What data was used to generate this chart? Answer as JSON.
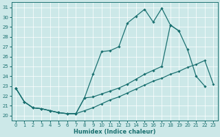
{
  "xlabel": "Humidex (Indice chaleur)",
  "bg_color": "#cce8e8",
  "line_color": "#1a7070",
  "xlim": [
    -0.5,
    23.5
  ],
  "ylim": [
    19.5,
    31.5
  ],
  "xticks": [
    0,
    1,
    2,
    3,
    4,
    5,
    6,
    7,
    8,
    9,
    10,
    11,
    12,
    13,
    14,
    15,
    16,
    17,
    18,
    19,
    20,
    21,
    22,
    23
  ],
  "yticks": [
    20,
    21,
    22,
    23,
    24,
    25,
    26,
    27,
    28,
    29,
    30,
    31
  ],
  "line1_y": [
    22.8,
    21.4,
    20.8,
    20.7,
    20.5,
    20.3,
    20.2,
    20.2,
    21.8,
    24.2,
    26.5,
    26.6,
    27.0,
    29.4,
    30.1,
    30.8,
    29.5,
    30.9,
    29.2,
    28.6,
    26.7,
    24.0,
    23.0,
    null
  ],
  "line2_y": [
    22.8,
    21.4,
    20.8,
    20.7,
    20.5,
    20.3,
    20.2,
    20.2,
    21.8,
    21.9,
    22.2,
    22.5,
    22.8,
    23.2,
    23.7,
    24.2,
    24.6,
    25.0,
    29.2,
    28.6,
    null,
    null,
    null,
    null
  ],
  "line3_y": [
    22.8,
    21.4,
    20.8,
    20.7,
    20.5,
    20.3,
    20.2,
    20.2,
    20.5,
    20.8,
    21.2,
    21.6,
    21.9,
    22.3,
    22.7,
    23.1,
    23.5,
    23.8,
    24.2,
    24.5,
    24.9,
    25.2,
    25.6,
    23.2
  ]
}
